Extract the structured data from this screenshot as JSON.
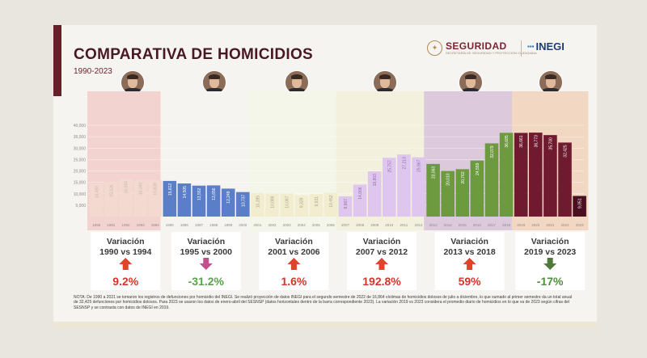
{
  "header": {
    "title": "COMPARATIVA DE HOMICIDIOS",
    "subtitle": "1990-2023",
    "logo_seguridad": "SEGURIDAD",
    "logo_seguridad_sub": "SECRETARÍA DE SEGURIDAD Y PROTECCIÓN CIUDADANA",
    "logo_inegi": "INEGI"
  },
  "chart_data": {
    "type": "bar",
    "title": "COMPARATIVA DE HOMICIDIOS",
    "subtitle": "1990-2023",
    "xlabel": "",
    "ylabel": "",
    "ylim": [
      0,
      40000
    ],
    "y_ticks": [
      "5,000",
      "10,000",
      "15,000",
      "20,000",
      "25,000",
      "30,000",
      "35,000",
      "40,000"
    ],
    "grid": true,
    "categories": [
      "1990",
      "1991",
      "1992",
      "1993",
      "1994",
      "1995",
      "1996",
      "1997",
      "1998",
      "1999",
      "2000",
      "2001",
      "2002",
      "2003",
      "2004",
      "2005",
      "2006",
      "2007",
      "2008",
      "2009",
      "2010",
      "2011",
      "2012",
      "2013",
      "2014",
      "2015",
      "2016",
      "2017",
      "2018",
      "2019",
      "2020",
      "2021",
      "2022",
      "2023"
    ],
    "values": [
      14493,
      15126,
      16594,
      16040,
      15839,
      15612,
      14505,
      13552,
      13656,
      12249,
      10737,
      10285,
      10088,
      10087,
      9329,
      9921,
      10452,
      8867,
      14006,
      19803,
      25757,
      27213,
      25967,
      23063,
      20010,
      20762,
      24559,
      32079,
      36685,
      36661,
      36773,
      35700,
      32425,
      9051
    ],
    "value_labels": [
      "14,493",
      "15,126",
      "16,594",
      "16,040",
      "15,839",
      "15,612",
      "14,505",
      "13,552",
      "13,656",
      "12,249",
      "10,737",
      "10,285",
      "10,088",
      "10,087",
      "9,329",
      "9,921",
      "10,452",
      "8,867",
      "14,006",
      "19,803",
      "25,757",
      "27,213",
      "25,967",
      "23,063",
      "20,010",
      "20,762",
      "24,559",
      "32,079",
      "36,685",
      "36,661",
      "36,773",
      "35,700",
      "32,425",
      "9,051"
    ],
    "periods": [
      {
        "start": 0,
        "end": 4,
        "bar_color": "#f3d9cf",
        "band_color": "#f3d3cf",
        "label_color": "#c7b6ab",
        "variation_title": "Variación",
        "variation_years": "1990 vs 1994",
        "variation_value": "9.2%",
        "trend": "up",
        "arrow_color": "#e0442f",
        "value_color": "#d9332b"
      },
      {
        "start": 5,
        "end": 10,
        "bar_color": "#5a7fc8",
        "band_color": "#f6f4f0",
        "label_color": "#ffffff",
        "variation_title": "Variación",
        "variation_years": "1995 vs 2000",
        "variation_value": "-31.2%",
        "trend": "down",
        "arrow_color": "#c2508a",
        "value_color": "#5aa14b"
      },
      {
        "start": 11,
        "end": 16,
        "bar_color": "#f3edcf",
        "band_color": "#f4f6ea",
        "label_color": "#a8a190",
        "variation_title": "Variación",
        "variation_years": "2001 vs 2006",
        "variation_value": "1.6%",
        "trend": "up",
        "arrow_color": "#e0442f",
        "value_color": "#d9332b"
      },
      {
        "start": 17,
        "end": 22,
        "bar_color": "#dfc6ef",
        "band_color": "#f3f1de",
        "label_color": "#8a6fa0",
        "variation_title": "Variación",
        "variation_years": "2007 vs 2012",
        "variation_value": "192.8%",
        "trend": "up",
        "arrow_color": "#e0442f",
        "value_color": "#d9332b"
      },
      {
        "start": 23,
        "end": 28,
        "bar_color": "#6e9a3f",
        "band_color": "#dcc9dc",
        "label_color": "#ffffff",
        "variation_title": "Variación",
        "variation_years": "2013 vs 2018",
        "variation_value": "59%",
        "trend": "up",
        "arrow_color": "#e0442f",
        "value_color": "#d9332b"
      },
      {
        "start": 29,
        "end": 33,
        "bar_color": "#701a30",
        "band_color": "#f2d8c2",
        "label_color": "#ffffff",
        "variation_title": "Variación",
        "variation_years": "2019 vs 2023",
        "variation_value": "-17%",
        "trend": "down",
        "arrow_color": "#4f7a3c",
        "value_color": "#4f8d3e"
      }
    ]
  },
  "notes": "NOTA: De 1990 a 2021 se tomaron los registros de defunciones por homicidio del INEGI. Se realizó proyección de datos INEGI para el segundo semestre de 2022 de 16,864 víctimas de homicidios dolosos de julio a diciembre, lo que sumado al primer semestre da un total anual de 32,425 defunciones por homicidios dolosos. Para 2023 se usaron los datos de enero-abril del SESNSP (datos horizontales dentro de la barra correspondiente 2023). La variación 2019 vs 2023 considera el promedio diario de homicidios en lo que va de 2023 según cifras del SESNSP y se contrasta con datos de INEGI en 2019."
}
